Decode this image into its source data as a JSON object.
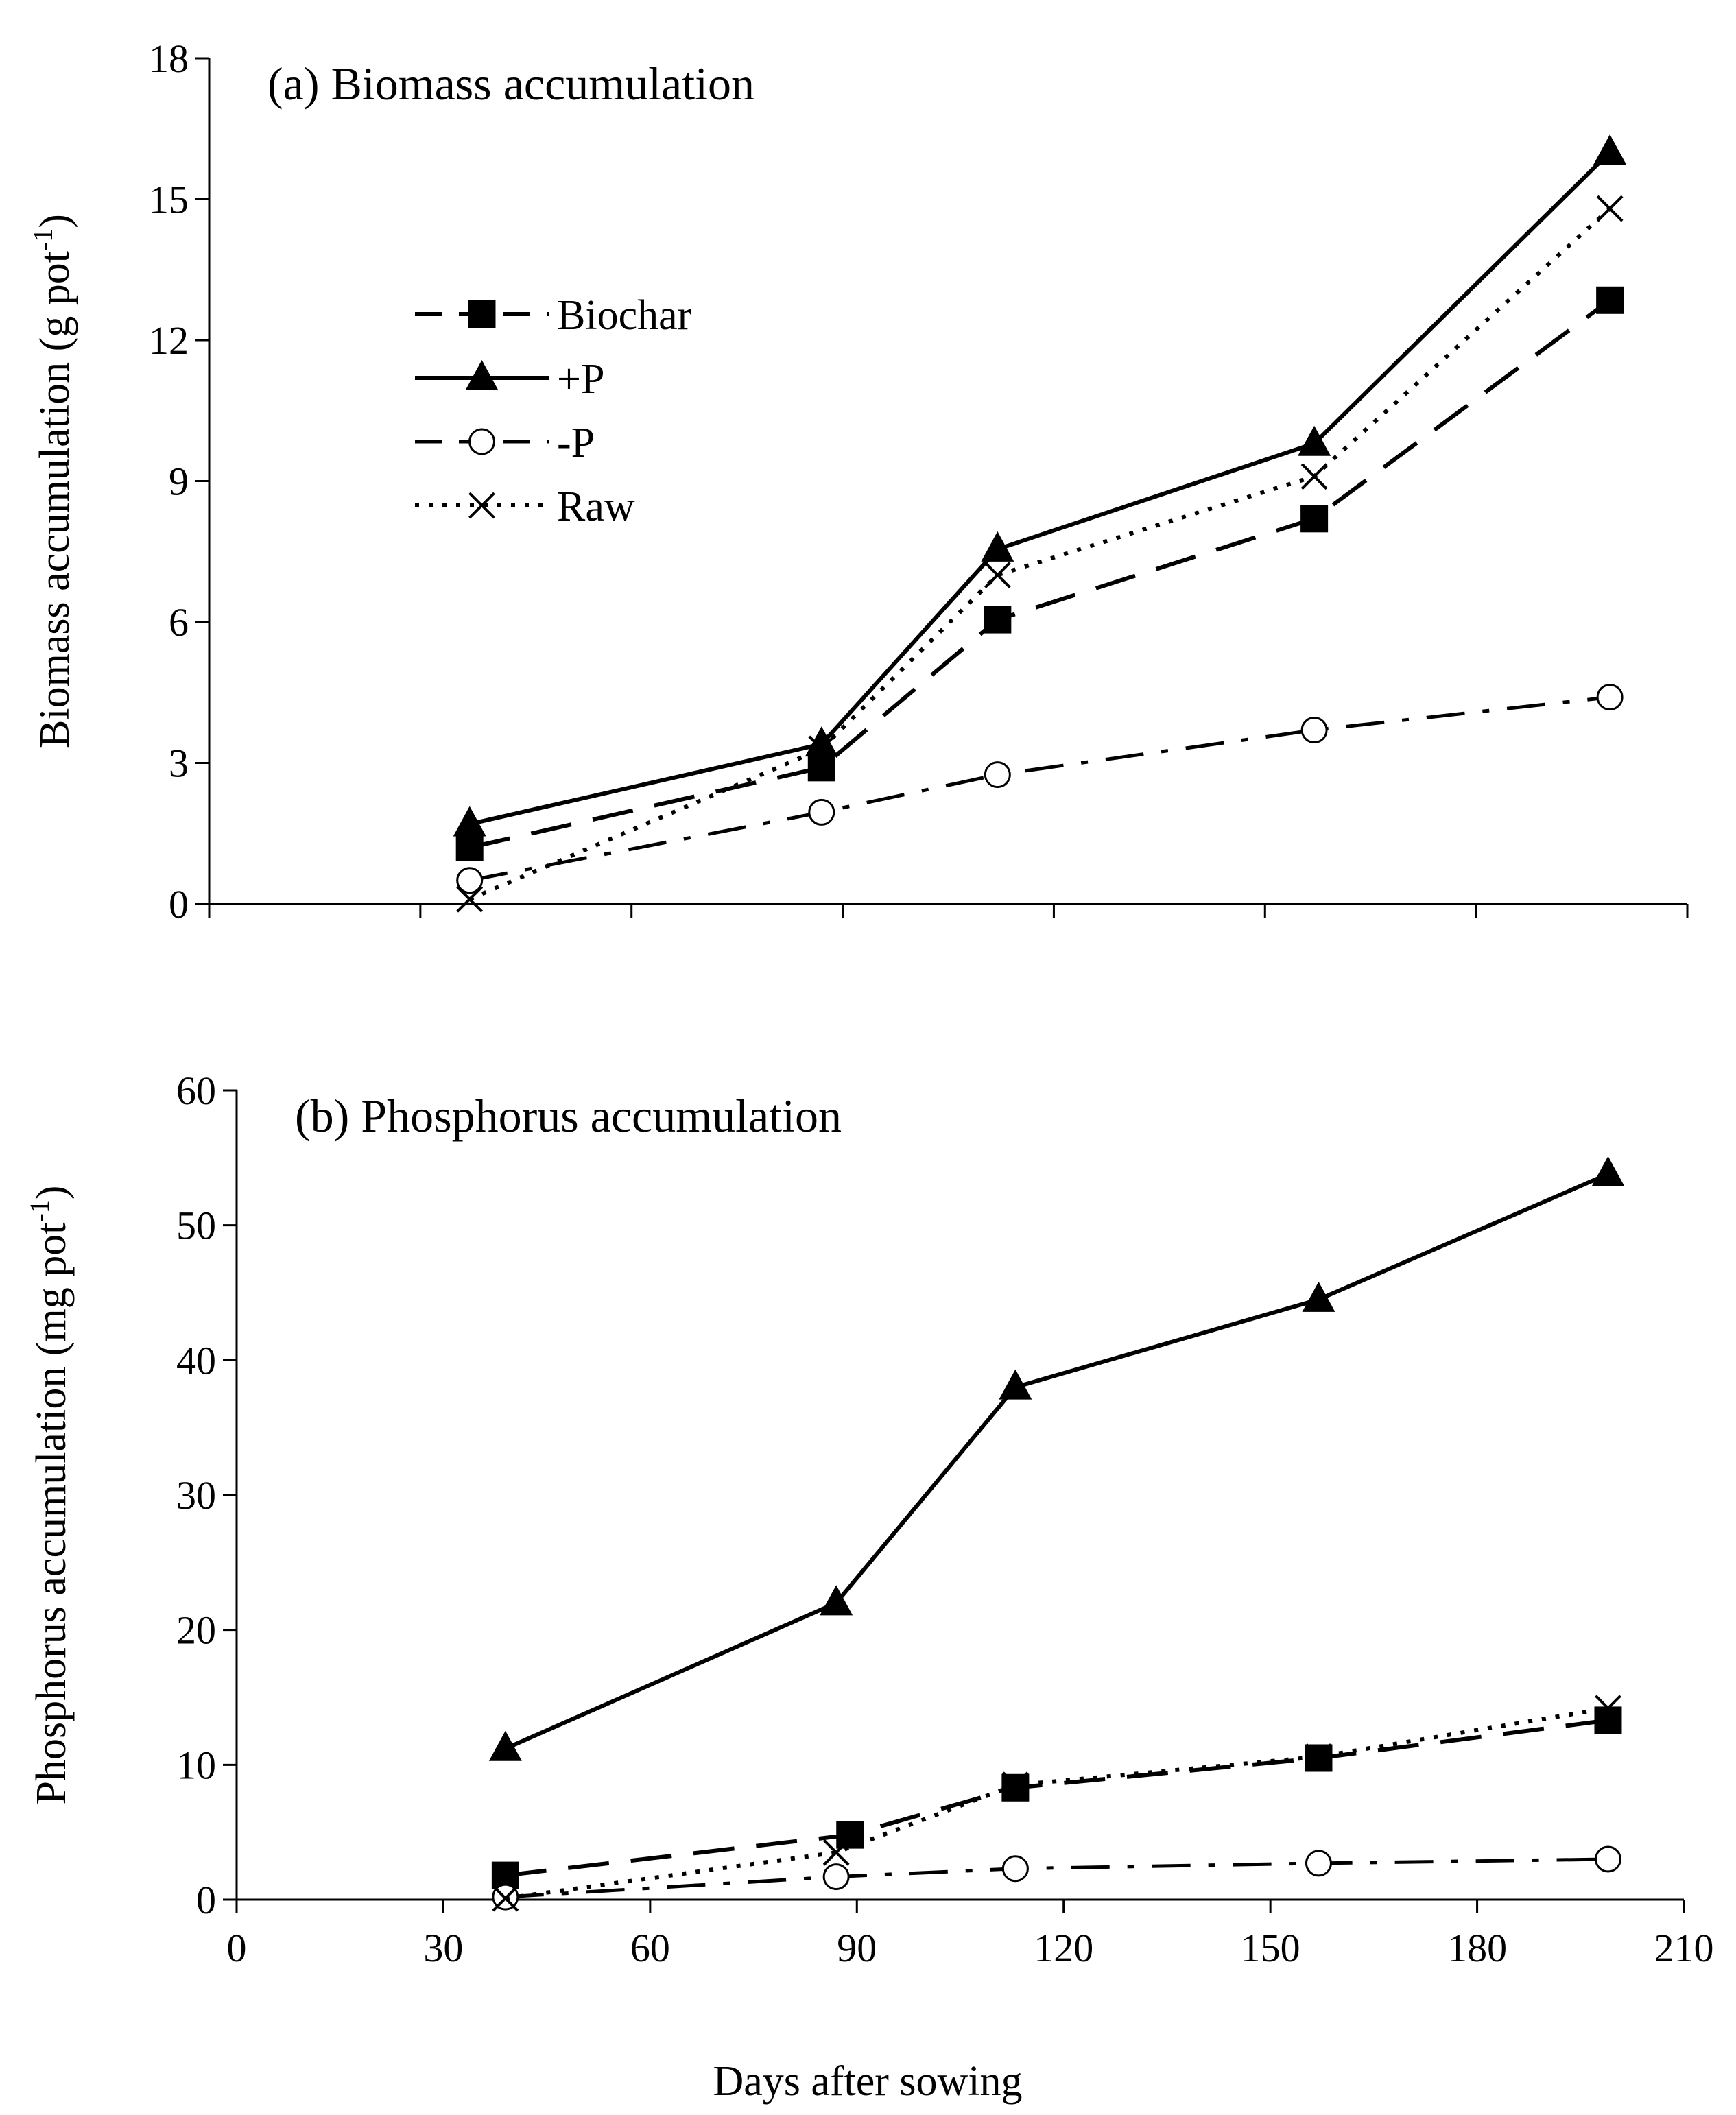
{
  "chart_data": [
    {
      "type": "line",
      "title": "(a) Biomass accumulation",
      "ylabel": "Biomass accumulation (g pot",
      "ylabel_sup": "-1",
      "ylabel_close": ")",
      "xlabel": "",
      "xlim": [
        0,
        210
      ],
      "ylim": [
        0,
        18
      ],
      "yticks": [
        0,
        3,
        6,
        9,
        12,
        15,
        18
      ],
      "xticks": [
        0,
        30,
        60,
        90,
        120,
        150,
        180,
        210
      ],
      "show_xtick_labels": false,
      "legend": "upper-left",
      "series": [
        {
          "name": "Biochar",
          "marker": "square",
          "line": "dashed",
          "x": [
            37,
            87,
            112,
            157,
            199
          ],
          "y": [
            1.2,
            2.9,
            6.05,
            8.2,
            12.85
          ]
        },
        {
          "name": "+P",
          "marker": "triangle",
          "line": "solid",
          "x": [
            37,
            87,
            112,
            157,
            199
          ],
          "y": [
            1.7,
            3.4,
            7.55,
            9.8,
            16.0
          ]
        },
        {
          "name": "-P",
          "marker": "open-circle",
          "line": "dashdot",
          "x": [
            37,
            87,
            112,
            157,
            199
          ],
          "y": [
            0.5,
            1.95,
            2.75,
            3.7,
            4.4
          ]
        },
        {
          "name": "Raw",
          "marker": "x",
          "line": "dotted",
          "x": [
            37,
            87,
            112,
            157,
            199
          ],
          "y": [
            0.1,
            3.3,
            7.0,
            9.1,
            14.8
          ]
        }
      ]
    },
    {
      "type": "line",
      "title": "(b) Phosphorus accumulation",
      "ylabel": "Phosphorus accumulation (mg pot",
      "ylabel_sup": "-1",
      "ylabel_close": ")",
      "xlabel": "Days after sowing",
      "xlim": [
        0,
        210
      ],
      "ylim": [
        0,
        60
      ],
      "yticks": [
        0,
        10,
        20,
        30,
        40,
        50,
        60
      ],
      "xticks": [
        0,
        30,
        60,
        90,
        120,
        150,
        180,
        210
      ],
      "show_xtick_labels": true,
      "series": [
        {
          "name": "Biochar",
          "marker": "square",
          "line": "dashed",
          "x": [
            39,
            89,
            113,
            157,
            199
          ],
          "y": [
            1.8,
            4.8,
            8.3,
            10.5,
            13.3
          ]
        },
        {
          "name": "+P",
          "marker": "triangle",
          "line": "solid",
          "x": [
            39,
            87,
            113,
            157,
            199
          ],
          "y": [
            11.2,
            22.0,
            38.0,
            44.5,
            53.8
          ]
        },
        {
          "name": "-P",
          "marker": "open-circle",
          "line": "dashdot",
          "x": [
            39,
            87,
            113,
            157,
            199
          ],
          "y": [
            0.2,
            1.7,
            2.3,
            2.7,
            3.0
          ]
        },
        {
          "name": "Raw",
          "marker": "x",
          "line": "dotted",
          "x": [
            39,
            87,
            113,
            157,
            199
          ],
          "y": [
            0.1,
            3.5,
            8.5,
            10.6,
            14.2
          ]
        }
      ]
    }
  ]
}
